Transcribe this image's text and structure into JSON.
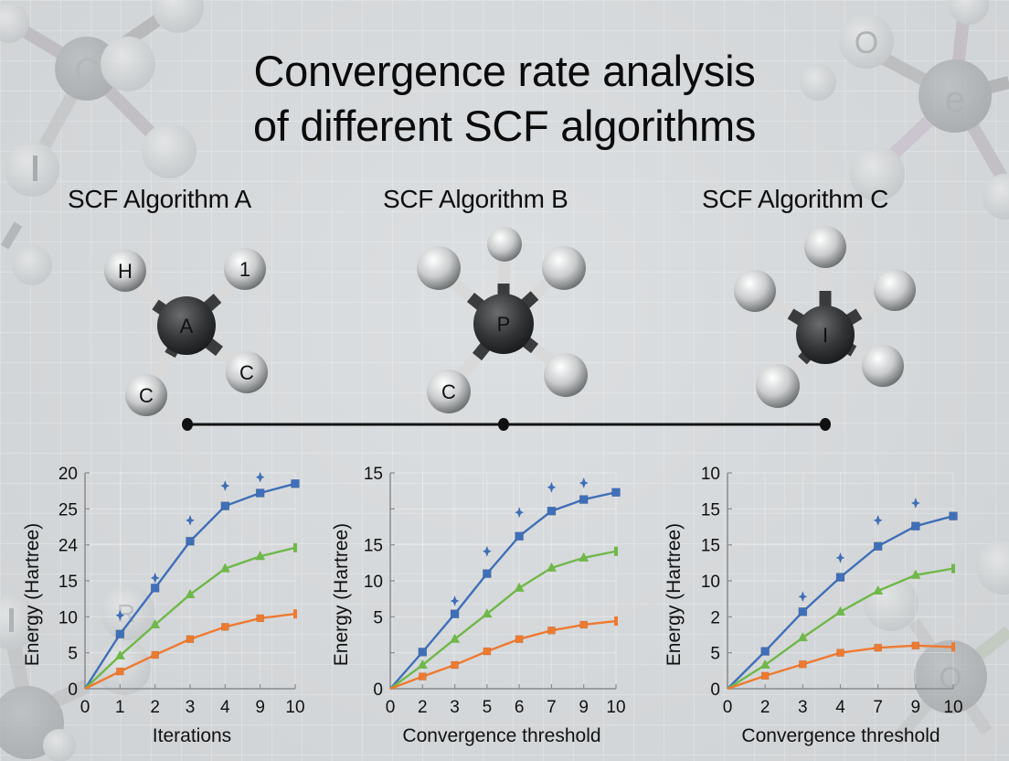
{
  "title": {
    "line1": "Convergence rate analysis",
    "line2": "of different SCF algorithms"
  },
  "algorithms": [
    {
      "label": "SCF Algorithm A",
      "molecule_center": "A",
      "atom_labels": [
        "H",
        "1",
        "C",
        "C"
      ]
    },
    {
      "label": "SCF Algorithm B",
      "molecule_center": "P",
      "atom_labels": [
        "",
        "",
        "",
        "C",
        ""
      ]
    },
    {
      "label": "SCF Algorithm C",
      "molecule_center": "I",
      "atom_labels": [
        "",
        "",
        "",
        "",
        ""
      ]
    }
  ],
  "colors": {
    "blue": "#3f6fb8",
    "green": "#6fb84a",
    "orange": "#ee7a30",
    "axis": "#8a8c8e",
    "text": "#111111",
    "background": "#d4d7d9"
  },
  "chart_data": [
    {
      "type": "line",
      "title": "SCF Algorithm A",
      "xlabel": "Iterations",
      "ylabel": "Energy (Hartree)",
      "categories": [
        "0",
        "1",
        "2",
        "3",
        "4",
        "9",
        "10"
      ],
      "y_tick_labels_top_to_bottom": [
        "20",
        "25",
        "24",
        "15",
        "10",
        "5",
        "0"
      ],
      "ylim_internal": [
        0,
        30
      ],
      "grid": true,
      "legend": "none",
      "series": [
        {
          "name": "blue",
          "color": "#3f6fb8",
          "marker": "square",
          "values": [
            0,
            7.6,
            14.0,
            20.5,
            25.4,
            27.2,
            28.5
          ]
        },
        {
          "name": "blue-star",
          "color": "#3f6fb8",
          "marker": "star",
          "values": [
            null,
            10.2,
            15.4,
            23.4,
            28.2,
            29.4,
            null
          ]
        },
        {
          "name": "green",
          "color": "#6fb84a",
          "marker": "triangle",
          "values": [
            0,
            4.6,
            8.9,
            13.1,
            16.7,
            18.4,
            19.6
          ]
        },
        {
          "name": "orange",
          "color": "#ee7a30",
          "marker": "square",
          "values": [
            0,
            2.4,
            4.7,
            6.9,
            8.6,
            9.8,
            10.4
          ]
        }
      ]
    },
    {
      "type": "line",
      "title": "SCF Algorithm B",
      "xlabel": "Convergence threshold",
      "ylabel": "Energy (Hartree)",
      "categories": [
        "0",
        "2",
        "3",
        "5",
        "6",
        "7",
        "9",
        "10"
      ],
      "y_tick_labels_top_to_bottom": [
        "15",
        "",
        "15",
        "10",
        "5",
        "",
        "0"
      ],
      "ylim_internal": [
        0,
        30
      ],
      "grid": true,
      "legend": "none",
      "series": [
        {
          "name": "blue",
          "color": "#3f6fb8",
          "marker": "square",
          "values": [
            0,
            5.1,
            10.4,
            16.0,
            21.2,
            24.7,
            26.3,
            27.3
          ]
        },
        {
          "name": "blue-star",
          "color": "#3f6fb8",
          "marker": "star",
          "values": [
            null,
            null,
            12.2,
            19.1,
            24.5,
            28.0,
            28.6,
            null
          ]
        },
        {
          "name": "green",
          "color": "#6fb84a",
          "marker": "triangle",
          "values": [
            0,
            3.3,
            6.9,
            10.4,
            14.0,
            16.8,
            18.2,
            19.1
          ]
        },
        {
          "name": "orange",
          "color": "#ee7a30",
          "marker": "square",
          "values": [
            0,
            1.7,
            3.3,
            5.2,
            6.9,
            8.1,
            8.9,
            9.4
          ]
        }
      ]
    },
    {
      "type": "line",
      "title": "SCF Algorithm C",
      "xlabel": "Convergence threshold",
      "ylabel": "Energy (Hartree)",
      "categories": [
        "0",
        "2",
        "3",
        "4",
        "7",
        "9",
        "10"
      ],
      "y_tick_labels_top_to_bottom": [
        "10",
        "15",
        "15",
        "10",
        "2",
        "5",
        "0"
      ],
      "ylim_internal": [
        0,
        30
      ],
      "grid": true,
      "legend": "none",
      "series": [
        {
          "name": "blue",
          "color": "#3f6fb8",
          "marker": "square",
          "values": [
            0,
            5.2,
            10.7,
            15.5,
            19.8,
            22.6,
            24.0
          ]
        },
        {
          "name": "blue-star",
          "color": "#3f6fb8",
          "marker": "star",
          "values": [
            null,
            null,
            12.8,
            18.2,
            23.4,
            25.8,
            null
          ]
        },
        {
          "name": "green",
          "color": "#6fb84a",
          "marker": "triangle",
          "values": [
            0,
            3.3,
            7.1,
            10.7,
            13.6,
            15.8,
            16.7
          ]
        },
        {
          "name": "orange",
          "color": "#ee7a30",
          "marker": "square",
          "values": [
            0,
            1.8,
            3.4,
            5.0,
            5.7,
            6.0,
            5.8
          ]
        }
      ]
    }
  ]
}
